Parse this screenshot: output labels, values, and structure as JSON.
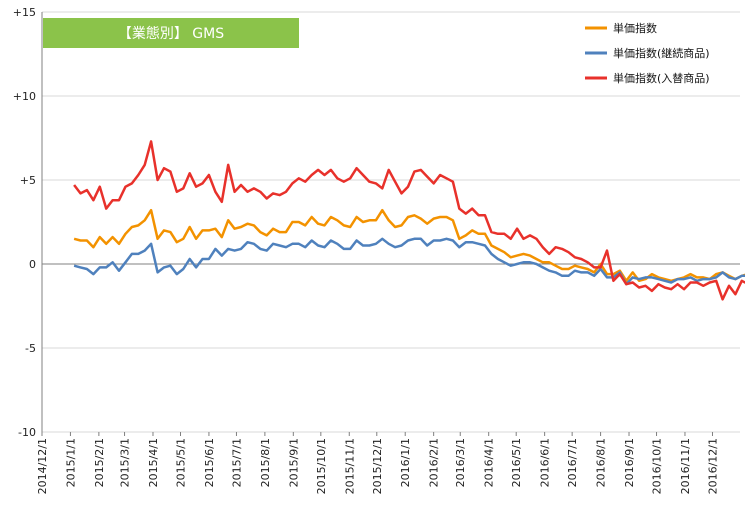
{
  "colors": {
    "series1": "#F39200",
    "series2": "#4F81BD",
    "series3": "#E8312B",
    "title_box": "#8BC34A",
    "grid": "#d9d9d9",
    "axis": "#808080"
  },
  "chart_data": {
    "type": "line",
    "title": "【業態別】 GMS",
    "xlabel": "",
    "ylabel": "",
    "ylim": [
      -10,
      15
    ],
    "y_ticks": [
      {
        "value": 15,
        "label": "+15"
      },
      {
        "value": 10,
        "label": "+10"
      },
      {
        "value": 5,
        "label": "+5"
      },
      {
        "value": 0,
        "label": "0"
      },
      {
        "value": -5,
        "label": "-5"
      },
      {
        "value": -10,
        "label": "-10"
      }
    ],
    "x_tick_labels": [
      "2014/12/1",
      "2015/1/1",
      "2015/2/1",
      "2015/3/1",
      "2015/4/1",
      "2015/5/1",
      "2015/6/1",
      "2015/7/1",
      "2015/8/1",
      "2015/9/1",
      "2015/10/1",
      "2015/11/1",
      "2015/12/1",
      "2016/1/1",
      "2016/2/1",
      "2016/3/1",
      "2016/4/1",
      "2016/5/1",
      "2016/6/1",
      "2016/7/1",
      "2016/8/1",
      "2016/9/1",
      "2016/10/1",
      "2016/11/1",
      "2016/12/1"
    ],
    "grid": true,
    "legend_position": "top-right",
    "x_start": "2015-01-05",
    "x_step_days": 7,
    "series": [
      {
        "name": "単価指数",
        "color_key": "series1",
        "values": [
          1.5,
          1.4,
          1.4,
          1.0,
          1.6,
          1.2,
          1.6,
          1.2,
          1.8,
          2.2,
          2.3,
          2.6,
          3.2,
          1.5,
          2.0,
          1.9,
          1.3,
          1.5,
          2.2,
          1.5,
          2.0,
          2.0,
          2.1,
          1.6,
          2.6,
          2.1,
          2.2,
          2.4,
          2.3,
          1.9,
          1.7,
          2.1,
          1.9,
          1.9,
          2.5,
          2.5,
          2.3,
          2.8,
          2.4,
          2.3,
          2.8,
          2.6,
          2.3,
          2.2,
          2.8,
          2.5,
          2.6,
          2.6,
          3.2,
          2.6,
          2.2,
          2.3,
          2.8,
          2.9,
          2.7,
          2.4,
          2.7,
          2.8,
          2.8,
          2.6,
          1.5,
          1.7,
          2.0,
          1.8,
          1.8,
          1.1,
          0.9,
          0.7,
          0.4,
          0.5,
          0.6,
          0.5,
          0.3,
          0.1,
          0.1,
          -0.1,
          -0.3,
          -0.3,
          -0.1,
          -0.2,
          -0.3,
          -0.5,
          0.0,
          -0.6,
          -0.6,
          -0.4,
          -1.0,
          -0.5,
          -1.0,
          -0.9,
          -0.6,
          -0.8,
          -0.9,
          -1.0,
          -0.9,
          -0.8,
          -0.6,
          -0.8,
          -0.8,
          -0.9,
          -0.6,
          -0.5,
          -0.7,
          -0.9,
          -0.7,
          -0.6,
          -1.1,
          -0.7
        ]
      },
      {
        "name": "単価指数(継続商品)",
        "color_key": "series2",
        "values": [
          -0.1,
          -0.2,
          -0.3,
          -0.6,
          -0.2,
          -0.2,
          0.1,
          -0.4,
          0.1,
          0.6,
          0.6,
          0.8,
          1.2,
          -0.5,
          -0.2,
          -0.1,
          -0.6,
          -0.3,
          0.3,
          -0.2,
          0.3,
          0.3,
          0.9,
          0.5,
          0.9,
          0.8,
          0.9,
          1.3,
          1.2,
          0.9,
          0.8,
          1.2,
          1.1,
          1.0,
          1.2,
          1.2,
          1.0,
          1.4,
          1.1,
          1.0,
          1.4,
          1.2,
          0.9,
          0.9,
          1.4,
          1.1,
          1.1,
          1.2,
          1.5,
          1.2,
          1.0,
          1.1,
          1.4,
          1.5,
          1.5,
          1.1,
          1.4,
          1.4,
          1.5,
          1.4,
          1.0,
          1.3,
          1.3,
          1.2,
          1.1,
          0.6,
          0.3,
          0.1,
          -0.1,
          0.0,
          0.1,
          0.1,
          0.0,
          -0.2,
          -0.4,
          -0.5,
          -0.7,
          -0.7,
          -0.4,
          -0.5,
          -0.5,
          -0.7,
          -0.3,
          -0.8,
          -0.8,
          -0.5,
          -1.2,
          -0.8,
          -0.9,
          -0.8,
          -0.8,
          -0.9,
          -1.0,
          -1.1,
          -0.9,
          -0.9,
          -0.8,
          -1.0,
          -0.9,
          -0.9,
          -0.8,
          -0.5,
          -0.8,
          -0.9,
          -0.7,
          -0.7,
          -1.1,
          -0.9
        ]
      },
      {
        "name": "単価指数(入替商品)",
        "color_key": "series3",
        "values": [
          4.7,
          4.2,
          4.4,
          3.8,
          4.6,
          3.3,
          3.8,
          3.8,
          4.6,
          4.8,
          5.3,
          5.9,
          7.3,
          5.0,
          5.7,
          5.5,
          4.3,
          4.5,
          5.4,
          4.6,
          4.8,
          5.3,
          4.3,
          3.7,
          5.9,
          4.3,
          4.7,
          4.3,
          4.5,
          4.3,
          3.9,
          4.2,
          4.1,
          4.3,
          4.8,
          5.1,
          4.9,
          5.3,
          5.6,
          5.3,
          5.6,
          5.1,
          4.9,
          5.1,
          5.7,
          5.3,
          4.9,
          4.8,
          4.5,
          5.6,
          4.9,
          4.2,
          4.6,
          5.5,
          5.6,
          5.2,
          4.8,
          5.3,
          5.1,
          4.9,
          3.3,
          3.0,
          3.3,
          2.9,
          2.9,
          1.9,
          1.8,
          1.8,
          1.5,
          2.1,
          1.5,
          1.7,
          1.5,
          1.0,
          0.6,
          1.0,
          0.9,
          0.7,
          0.4,
          0.3,
          0.1,
          -0.2,
          -0.2,
          0.8,
          -1.0,
          -0.6,
          -1.2,
          -1.1,
          -1.4,
          -1.3,
          -1.6,
          -1.2,
          -1.4,
          -1.5,
          -1.2,
          -1.5,
          -1.1,
          -1.1,
          -1.3,
          -1.1,
          -1.0,
          -2.1,
          -1.3,
          -1.8,
          -1.0,
          -1.2,
          -1.5,
          -1.7
        ]
      }
    ]
  }
}
